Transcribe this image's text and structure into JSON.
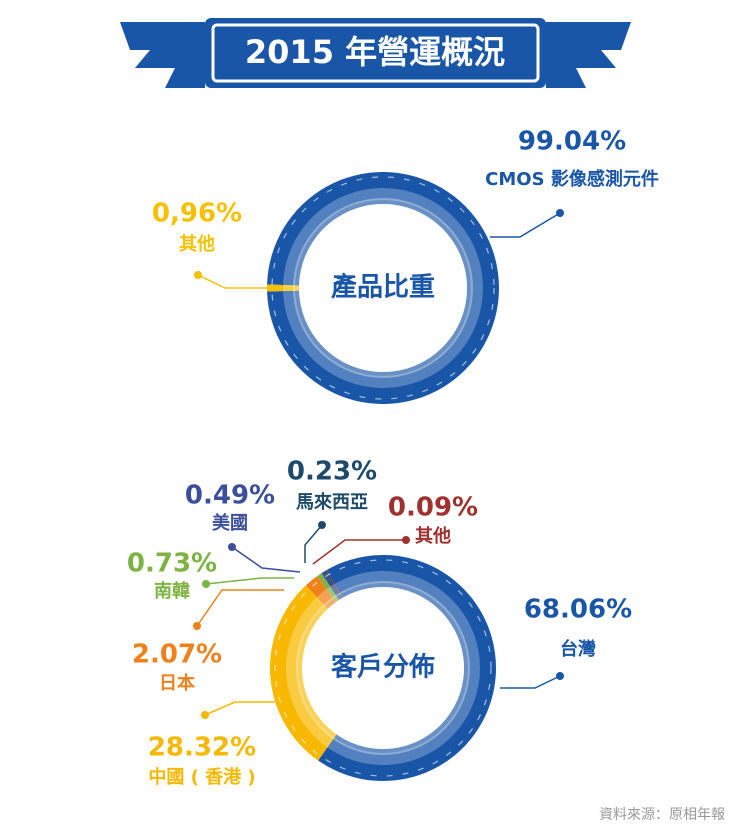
{
  "title": "2015 年營運概況",
  "source": "資料來源：原相年報",
  "chart_data": [
    {
      "type": "donut",
      "title": "產品比重",
      "categories": [
        "CMOS 影像感測元件",
        "其他"
      ],
      "values": [
        99.04,
        0.96
      ],
      "value_labels": [
        "99.04%",
        "0,96%"
      ],
      "colors": [
        "#1a56a8",
        "#f5c000"
      ]
    },
    {
      "type": "donut",
      "title": "客戶分佈",
      "categories": [
        "台灣",
        "中國 ( 香港 )",
        "日本",
        "南韓",
        "美國",
        "馬來西亞",
        "其他"
      ],
      "values": [
        68.06,
        28.32,
        2.07,
        0.73,
        0.49,
        0.23,
        0.09
      ],
      "value_labels": [
        "68.06%",
        "28.32%",
        "2.07%",
        "0.73%",
        "0.49%",
        "0.23%",
        "0.09%"
      ],
      "colors": [
        "#1a56a8",
        "#f8b800",
        "#f0801a",
        "#7cb342",
        "#3b4f9a",
        "#1d4a6a",
        "#a0312f"
      ]
    }
  ]
}
